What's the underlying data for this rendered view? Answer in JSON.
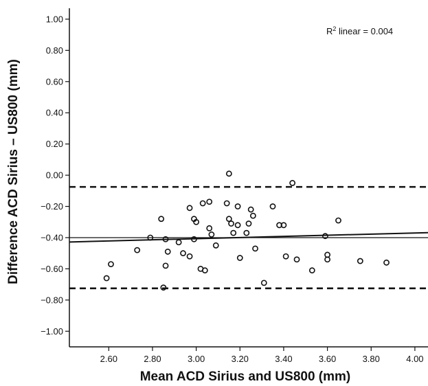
{
  "chart_data": {
    "type": "scatter",
    "title": "",
    "xlabel": "Mean ACD Sirius and US800 (mm)",
    "ylabel": "Difference ACD Sirius – US800 (mm)",
    "xlim": [
      2.42,
      4.06
    ],
    "ylim": [
      -1.1,
      1.07
    ],
    "x_ticks": [
      2.6,
      2.8,
      3.0,
      3.2,
      3.4,
      3.6,
      3.8,
      4.0
    ],
    "x_tick_labels": [
      "2.60",
      "2.80",
      "3.00",
      "3.20",
      "3.40",
      "3.60",
      "3.80",
      "4.00"
    ],
    "y_ticks": [
      1.0,
      0.8,
      0.6,
      0.4,
      0.2,
      0.0,
      -0.2,
      -0.4,
      -0.6,
      -0.8,
      -1.0
    ],
    "y_tick_labels": [
      "1.00",
      "0.80",
      "0.60",
      "0.40",
      "0.20",
      "0.00",
      "−0.20",
      "−0.40",
      "−0.60",
      "−0.80",
      "−1.00"
    ],
    "annotation": {
      "prefix": "R",
      "superscript": "2",
      "suffix": " linear = 0.004"
    },
    "mean_line": -0.4,
    "limits_of_agreement": [
      -0.075,
      -0.725
    ],
    "fit_line": {
      "x": [
        2.42,
        4.06
      ],
      "y": [
        -0.428,
        -0.368
      ]
    },
    "points": [
      {
        "x": 2.59,
        "y": -0.66
      },
      {
        "x": 2.61,
        "y": -0.57
      },
      {
        "x": 2.73,
        "y": -0.48
      },
      {
        "x": 2.79,
        "y": -0.4
      },
      {
        "x": 2.84,
        "y": -0.28
      },
      {
        "x": 2.85,
        "y": -0.72
      },
      {
        "x": 2.86,
        "y": -0.41
      },
      {
        "x": 2.86,
        "y": -0.58
      },
      {
        "x": 2.87,
        "y": -0.49
      },
      {
        "x": 2.92,
        "y": -0.43
      },
      {
        "x": 2.94,
        "y": -0.5
      },
      {
        "x": 2.97,
        "y": -0.21
      },
      {
        "x": 2.97,
        "y": -0.52
      },
      {
        "x": 2.99,
        "y": -0.41
      },
      {
        "x": 2.99,
        "y": -0.28
      },
      {
        "x": 3.0,
        "y": -0.3
      },
      {
        "x": 3.02,
        "y": -0.6
      },
      {
        "x": 3.03,
        "y": -0.18
      },
      {
        "x": 3.04,
        "y": -0.61
      },
      {
        "x": 3.06,
        "y": -0.17
      },
      {
        "x": 3.06,
        "y": -0.34
      },
      {
        "x": 3.07,
        "y": -0.38
      },
      {
        "x": 3.09,
        "y": -0.45
      },
      {
        "x": 3.14,
        "y": -0.18
      },
      {
        "x": 3.15,
        "y": -0.28
      },
      {
        "x": 3.15,
        "y": 0.01
      },
      {
        "x": 3.16,
        "y": -0.31
      },
      {
        "x": 3.17,
        "y": -0.37
      },
      {
        "x": 3.19,
        "y": -0.2
      },
      {
        "x": 3.19,
        "y": -0.32
      },
      {
        "x": 3.2,
        "y": -0.53
      },
      {
        "x": 3.23,
        "y": -0.37
      },
      {
        "x": 3.24,
        "y": -0.31
      },
      {
        "x": 3.25,
        "y": -0.22
      },
      {
        "x": 3.26,
        "y": -0.26
      },
      {
        "x": 3.27,
        "y": -0.47
      },
      {
        "x": 3.31,
        "y": -0.69
      },
      {
        "x": 3.35,
        "y": -0.2
      },
      {
        "x": 3.38,
        "y": -0.32
      },
      {
        "x": 3.4,
        "y": -0.32
      },
      {
        "x": 3.41,
        "y": -0.52
      },
      {
        "x": 3.44,
        "y": -0.05
      },
      {
        "x": 3.46,
        "y": -0.54
      },
      {
        "x": 3.53,
        "y": -0.61
      },
      {
        "x": 3.59,
        "y": -0.39
      },
      {
        "x": 3.6,
        "y": -0.54
      },
      {
        "x": 3.6,
        "y": -0.51
      },
      {
        "x": 3.65,
        "y": -0.29
      },
      {
        "x": 3.75,
        "y": -0.55
      },
      {
        "x": 3.87,
        "y": -0.56
      }
    ],
    "grid": false,
    "legend": "none"
  }
}
